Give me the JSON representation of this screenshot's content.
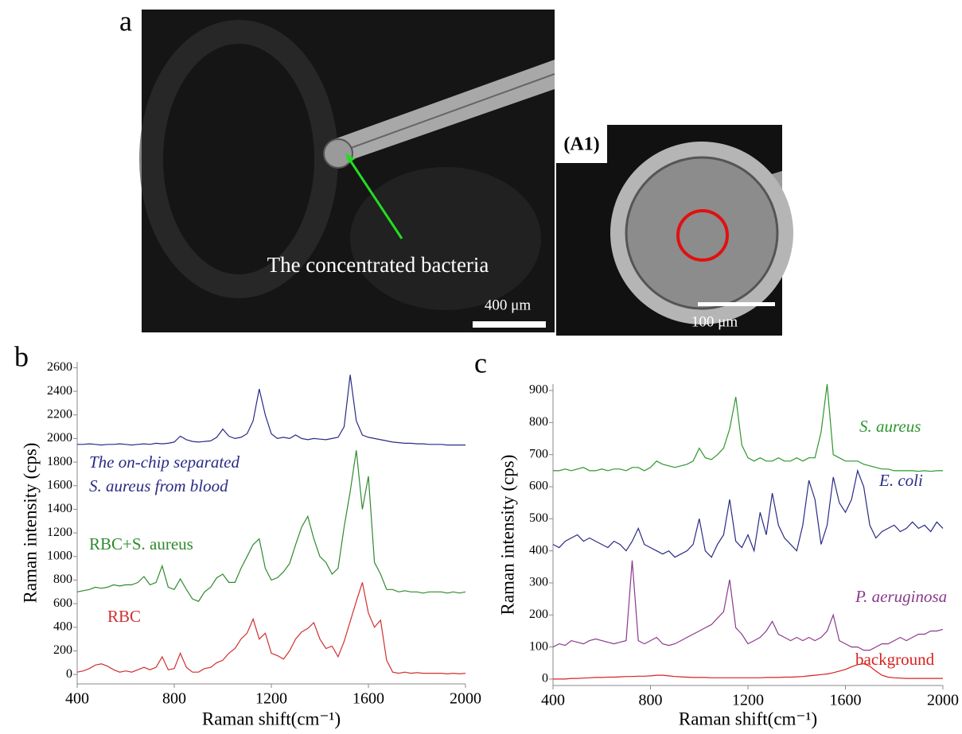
{
  "panel_a": {
    "label": "a",
    "annotation": "The concentrated bacteria",
    "scale_bar": "400 μm",
    "inset": {
      "label": "(A1)",
      "scale_bar": "100 μm"
    }
  },
  "chart_data": [
    {
      "type": "line",
      "panel_label": "b",
      "xlabel": "Raman shift(cm⁻¹)",
      "ylabel": "Raman  intensity (cps)",
      "xlim": [
        400,
        2000
      ],
      "xticks": [
        400,
        800,
        1200,
        1600,
        2000
      ],
      "ylim": [
        -80,
        2650
      ],
      "yticks": [
        0,
        200,
        400,
        600,
        800,
        1000,
        1200,
        1400,
        1600,
        1800,
        2000,
        2200,
        2400,
        2600
      ],
      "x": [
        400,
        425,
        450,
        475,
        500,
        525,
        550,
        575,
        600,
        625,
        650,
        675,
        700,
        725,
        750,
        775,
        800,
        825,
        850,
        875,
        900,
        925,
        950,
        975,
        1000,
        1025,
        1050,
        1075,
        1100,
        1125,
        1150,
        1175,
        1200,
        1225,
        1250,
        1275,
        1300,
        1325,
        1350,
        1375,
        1400,
        1425,
        1450,
        1475,
        1500,
        1525,
        1550,
        1575,
        1600,
        1625,
        1650,
        1675,
        1700,
        1725,
        1750,
        1775,
        1800,
        1825,
        1850,
        1875,
        1900,
        1925,
        1950,
        1975,
        2000
      ],
      "series": [
        {
          "name": [
            "The on-chip separated",
            "S. aureus from blood"
          ],
          "color": "#2a2a86",
          "values": [
            1950,
            1950,
            1955,
            1950,
            1945,
            1950,
            1950,
            1955,
            1950,
            1945,
            1950,
            1955,
            1950,
            1960,
            1955,
            1960,
            1970,
            2020,
            1990,
            1975,
            1970,
            1975,
            1980,
            2010,
            2080,
            2020,
            2000,
            2010,
            2040,
            2150,
            2420,
            2200,
            2040,
            2000,
            2010,
            2000,
            2030,
            2000,
            1990,
            2000,
            1995,
            1990,
            2000,
            2010,
            2100,
            2540,
            2150,
            2030,
            2010,
            2000,
            1990,
            1980,
            1970,
            1965,
            1960,
            1960,
            1955,
            1955,
            1950,
            1950,
            1950,
            1945,
            1945,
            1945,
            1945
          ]
        },
        {
          "name": "RBC+S. aureus",
          "color": "#2e8a2e",
          "values": [
            700,
            710,
            720,
            740,
            730,
            740,
            760,
            750,
            760,
            760,
            780,
            830,
            760,
            780,
            920,
            740,
            720,
            810,
            720,
            640,
            620,
            700,
            740,
            820,
            850,
            780,
            780,
            900,
            1000,
            1100,
            1150,
            900,
            800,
            820,
            870,
            940,
            1100,
            1250,
            1340,
            1150,
            1000,
            950,
            850,
            900,
            1250,
            1550,
            1900,
            1400,
            1680,
            950,
            850,
            720,
            720,
            700,
            710,
            700,
            700,
            690,
            700,
            700,
            700,
            690,
            700,
            690,
            700
          ]
        },
        {
          "name": "RBC",
          "color": "#d03030",
          "values": [
            20,
            30,
            50,
            80,
            90,
            70,
            40,
            20,
            30,
            20,
            40,
            60,
            40,
            60,
            150,
            40,
            50,
            180,
            60,
            20,
            20,
            50,
            60,
            100,
            120,
            180,
            220,
            300,
            350,
            470,
            300,
            350,
            180,
            160,
            130,
            200,
            300,
            360,
            390,
            440,
            300,
            220,
            240,
            150,
            280,
            450,
            620,
            780,
            520,
            400,
            460,
            120,
            20,
            10,
            20,
            10,
            15,
            10,
            10,
            10,
            10,
            5,
            10,
            5,
            10
          ]
        }
      ]
    },
    {
      "type": "line",
      "panel_label": "c",
      "xlabel": "Raman shift(cm⁻¹)",
      "ylabel": "Raman  intensity (cps)",
      "xlim": [
        400,
        2000
      ],
      "xticks": [
        400,
        800,
        1200,
        1600,
        2000
      ],
      "ylim": [
        -20,
        920
      ],
      "yticks": [
        0,
        100,
        200,
        300,
        400,
        500,
        600,
        700,
        800,
        900
      ],
      "x": [
        400,
        425,
        450,
        475,
        500,
        525,
        550,
        575,
        600,
        625,
        650,
        675,
        700,
        725,
        750,
        775,
        800,
        825,
        850,
        875,
        900,
        925,
        950,
        975,
        1000,
        1025,
        1050,
        1075,
        1100,
        1125,
        1150,
        1175,
        1200,
        1225,
        1250,
        1275,
        1300,
        1325,
        1350,
        1375,
        1400,
        1425,
        1450,
        1475,
        1500,
        1525,
        1550,
        1575,
        1600,
        1625,
        1650,
        1675,
        1700,
        1725,
        1750,
        1775,
        1800,
        1825,
        1850,
        1875,
        1900,
        1925,
        1950,
        1975,
        2000
      ],
      "series": [
        {
          "name": "S. aureus",
          "color": "#2e962e",
          "values": [
            650,
            650,
            655,
            650,
            655,
            660,
            650,
            650,
            655,
            650,
            655,
            655,
            650,
            660,
            660,
            650,
            660,
            680,
            670,
            665,
            660,
            665,
            670,
            680,
            720,
            690,
            685,
            700,
            720,
            780,
            880,
            730,
            690,
            680,
            690,
            680,
            680,
            690,
            680,
            680,
            690,
            680,
            690,
            690,
            770,
            920,
            700,
            690,
            680,
            680,
            680,
            670,
            665,
            660,
            655,
            655,
            650,
            650,
            650,
            650,
            648,
            650,
            648,
            650,
            650
          ]
        },
        {
          "name": "E. coli",
          "color": "#2a2a86",
          "values": [
            420,
            410,
            430,
            440,
            450,
            430,
            440,
            430,
            420,
            410,
            430,
            420,
            400,
            430,
            470,
            420,
            410,
            400,
            390,
            400,
            380,
            390,
            400,
            420,
            500,
            400,
            380,
            420,
            450,
            560,
            430,
            410,
            450,
            400,
            520,
            450,
            580,
            480,
            440,
            420,
            400,
            480,
            620,
            560,
            420,
            480,
            630,
            550,
            520,
            560,
            650,
            600,
            480,
            440,
            460,
            470,
            480,
            460,
            470,
            490,
            470,
            480,
            460,
            490,
            470
          ]
        },
        {
          "name": "P. aeruginosa",
          "color": "#8a3a8a",
          "values": [
            100,
            110,
            105,
            120,
            115,
            110,
            120,
            125,
            120,
            115,
            110,
            115,
            120,
            370,
            120,
            110,
            120,
            130,
            110,
            105,
            110,
            120,
            130,
            140,
            150,
            160,
            170,
            190,
            210,
            310,
            160,
            140,
            110,
            120,
            130,
            150,
            180,
            140,
            130,
            120,
            130,
            120,
            130,
            120,
            130,
            150,
            200,
            120,
            110,
            100,
            100,
            90,
            90,
            100,
            110,
            110,
            120,
            130,
            120,
            130,
            140,
            140,
            150,
            150,
            155
          ]
        },
        {
          "name": "background",
          "color": "#d82020",
          "values": [
            0,
            0,
            0,
            2,
            2,
            3,
            4,
            5,
            5,
            6,
            6,
            7,
            8,
            8,
            9,
            9,
            10,
            12,
            12,
            10,
            8,
            7,
            6,
            5,
            5,
            5,
            4,
            4,
            4,
            4,
            4,
            4,
            4,
            4,
            4,
            5,
            5,
            5,
            6,
            6,
            7,
            8,
            10,
            12,
            14,
            16,
            20,
            25,
            30,
            38,
            45,
            48,
            40,
            25,
            12,
            6,
            4,
            3,
            2,
            2,
            2,
            2,
            2,
            2,
            2
          ]
        }
      ]
    }
  ]
}
